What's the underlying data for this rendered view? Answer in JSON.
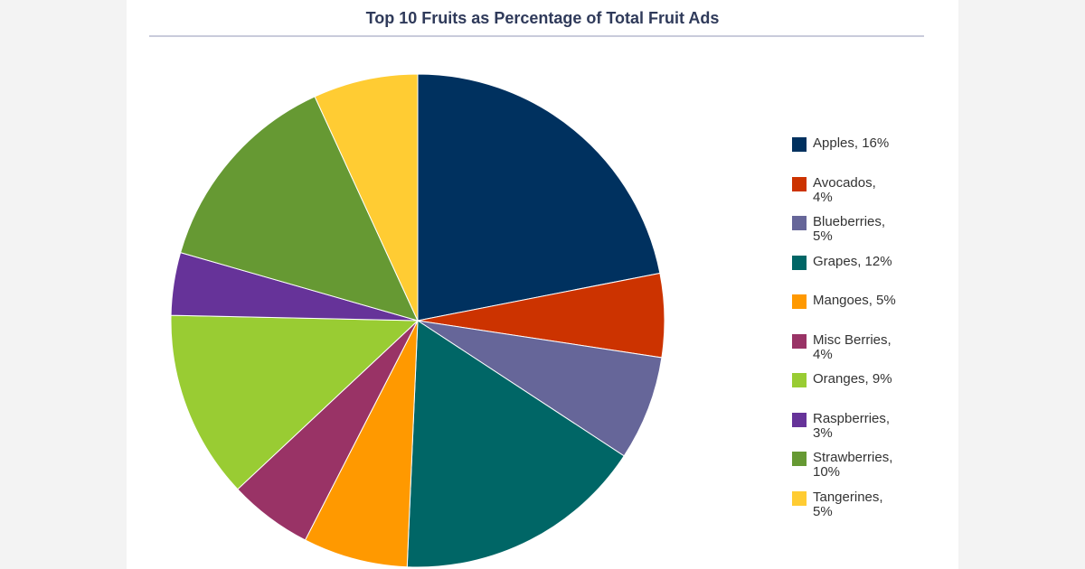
{
  "chart_data": {
    "type": "pie",
    "title": "Top 10 Fruits as Percentage of Total Fruit Ads",
    "categories": [
      "Apples, 16%",
      "Avocados,\n4%",
      "Blueberries,\n5%",
      "Grapes, 12%",
      "Mangoes, 5%",
      "Misc Berries,\n4%",
      "Oranges, 9%",
      "Raspberries,\n3%",
      "Strawberries,\n10%",
      "Tangerines,\n5%"
    ],
    "values": [
      16,
      4,
      5,
      12,
      5,
      4,
      9,
      3,
      10,
      5
    ],
    "colors": [
      "#00315f",
      "#cc3300",
      "#666699",
      "#006666",
      "#ff9900",
      "#993366",
      "#99cc33",
      "#663399",
      "#669933",
      "#ffcc33"
    ],
    "legend": "right"
  }
}
